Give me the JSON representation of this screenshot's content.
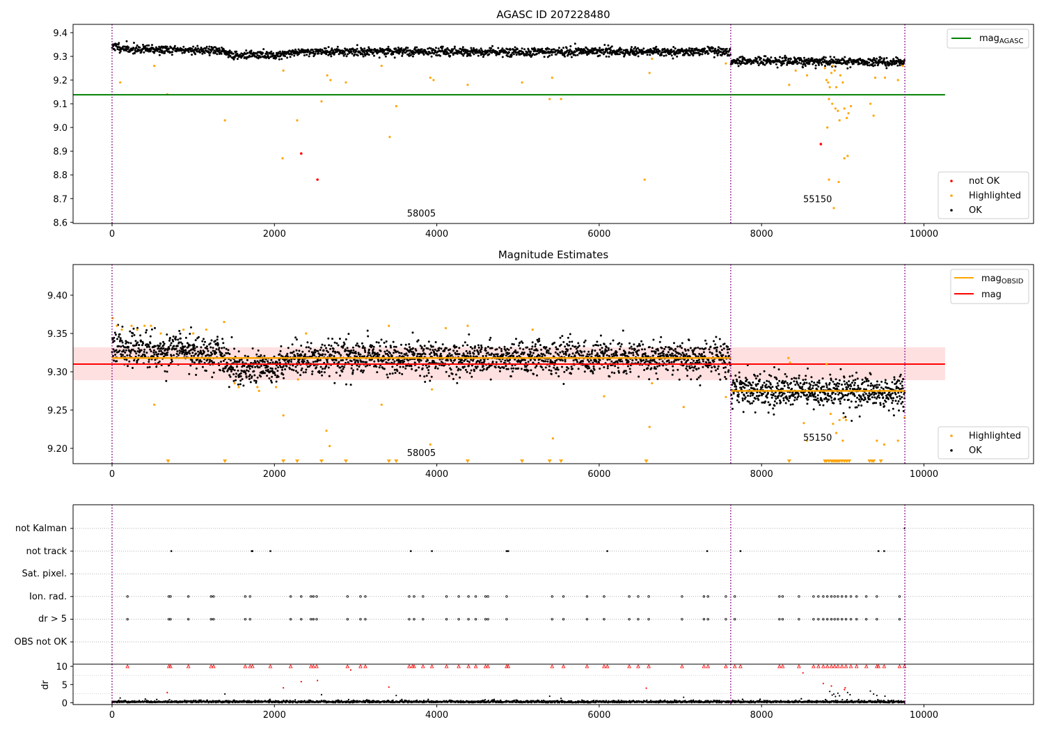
{
  "chart_data": [
    {
      "type": "scatter",
      "title": "AGASC ID 207228480",
      "xlim": [
        -480,
        11350
      ],
      "ylim": [
        8.595,
        9.435
      ],
      "xticks": [
        0,
        2000,
        4000,
        6000,
        8000,
        10000
      ],
      "yticks": [
        8.6,
        8.7,
        8.8,
        8.9,
        9.0,
        9.1,
        9.2,
        9.3,
        9.4
      ],
      "vlines": [
        0,
        7620,
        9765
      ],
      "hline": {
        "name": "mag",
        "subscript": "AGASC",
        "y": 9.138,
        "x": [
          -480,
          10260
        ],
        "color": "#008000"
      },
      "annotations": [
        {
          "text": "58005",
          "x": 3810,
          "y": 8.625
        },
        {
          "text": "55150",
          "x": 8690,
          "y": 8.685
        }
      ],
      "legend_top": {
        "placement": "top-right",
        "entries": [
          {
            "label": "mag",
            "subscript": "AGASC",
            "color": "#008000"
          }
        ]
      },
      "legend_bottom": {
        "placement": "bottom-right",
        "entries": [
          {
            "label": "not OK",
            "color": "#ff0000"
          },
          {
            "label": "Highlighted",
            "color": "#ffa500"
          },
          {
            "label": "OK",
            "color": "#000000"
          }
        ]
      },
      "segments": [
        {
          "x": [
            0,
            7620
          ],
          "levels": [
            [
              0,
              9.345
            ],
            [
              200,
              9.33
            ],
            [
              1300,
              9.325
            ],
            [
              1500,
              9.305
            ],
            [
              2000,
              9.305
            ],
            [
              2300,
              9.32
            ],
            [
              7620,
              9.32
            ]
          ],
          "noise": 0.009
        },
        {
          "x": [
            7620,
            9765
          ],
          "levels": [
            [
              7620,
              9.28
            ],
            [
              9765,
              9.275
            ]
          ],
          "noise": 0.009
        }
      ],
      "highlighted": [
        [
          100,
          9.19
        ],
        [
          520,
          9.26
        ],
        [
          680,
          9.14
        ],
        [
          1390,
          9.03
        ],
        [
          2100,
          8.87
        ],
        [
          2110,
          9.24
        ],
        [
          2280,
          9.03
        ],
        [
          2580,
          9.11
        ],
        [
          2650,
          9.22
        ],
        [
          2690,
          9.2
        ],
        [
          2880,
          9.19
        ],
        [
          3320,
          9.26
        ],
        [
          3420,
          8.96
        ],
        [
          3500,
          9.09
        ],
        [
          3920,
          9.21
        ],
        [
          3960,
          9.2
        ],
        [
          4380,
          9.18
        ],
        [
          5050,
          9.19
        ],
        [
          5420,
          9.21
        ],
        [
          5390,
          9.12
        ],
        [
          5530,
          9.12
        ],
        [
          6560,
          8.78
        ],
        [
          6620,
          9.23
        ],
        [
          6650,
          9.29
        ],
        [
          7560,
          9.27
        ],
        [
          8340,
          9.18
        ],
        [
          8420,
          9.24
        ],
        [
          8560,
          9.22
        ],
        [
          8780,
          9.25
        ],
        [
          8800,
          9.2
        ],
        [
          8820,
          9.19
        ],
        [
          8830,
          9.12
        ],
        [
          8840,
          9.17
        ],
        [
          8860,
          9.23
        ],
        [
          8870,
          9.1
        ],
        [
          8880,
          9.26
        ],
        [
          8900,
          9.24
        ],
        [
          8910,
          9.08
        ],
        [
          8920,
          9.17
        ],
        [
          8940,
          9.07
        ],
        [
          8960,
          9.03
        ],
        [
          8970,
          9.22
        ],
        [
          9000,
          9.19
        ],
        [
          9020,
          9.08
        ],
        [
          9050,
          9.04
        ],
        [
          9070,
          9.06
        ],
        [
          9100,
          9.09
        ],
        [
          9020,
          8.87
        ],
        [
          9060,
          8.88
        ],
        [
          8810,
          9.0
        ],
        [
          8830,
          8.78
        ],
        [
          8950,
          8.77
        ],
        [
          8890,
          8.66
        ],
        [
          9340,
          9.1
        ],
        [
          9380,
          9.05
        ],
        [
          9400,
          9.21
        ],
        [
          9520,
          9.21
        ],
        [
          9680,
          9.2
        ],
        [
          9740,
          9.26
        ]
      ],
      "not_ok": [
        [
          2330,
          8.89
        ],
        [
          2530,
          8.78
        ],
        [
          8730,
          8.93
        ]
      ]
    },
    {
      "type": "scatter",
      "title": "Magnitude Estimates",
      "xlim": [
        -480,
        11350
      ],
      "ylim": [
        9.18,
        9.44
      ],
      "xticks": [
        0,
        2000,
        4000,
        6000,
        8000,
        10000
      ],
      "yticks": [
        9.2,
        9.25,
        9.3,
        9.35,
        9.4
      ],
      "vlines": [
        0,
        7620,
        9765
      ],
      "mag_line": {
        "name": "mag",
        "y": 9.31,
        "band": [
          9.289,
          9.332
        ],
        "x": [
          -480,
          10260
        ],
        "color": "#ff0000"
      },
      "obsid_lines": [
        {
          "x": [
            0,
            7620
          ],
          "y": 9.318
        },
        {
          "x": [
            7620,
            9765
          ],
          "y": 9.275
        }
      ],
      "annotations": [
        {
          "text": "58005",
          "x": 3810,
          "y": 9.19
        },
        {
          "text": "55150",
          "x": 8690,
          "y": 9.21
        }
      ],
      "legend_top": {
        "placement": "top-right",
        "entries": [
          {
            "label": "mag",
            "subscript": "OBSID",
            "color": "#ffa500"
          },
          {
            "label": "mag",
            "subscript": "",
            "color": "#ff0000"
          }
        ]
      },
      "legend_bottom": {
        "placement": "bottom-right",
        "entries": [
          {
            "label": "Highlighted",
            "color": "#ffa500"
          },
          {
            "label": "OK",
            "color": "#000000"
          }
        ]
      },
      "segments": [
        {
          "x": [
            0,
            7620
          ],
          "levels": [
            [
              0,
              9.34
            ],
            [
              200,
              9.33
            ],
            [
              1300,
              9.325
            ],
            [
              1500,
              9.305
            ],
            [
              2000,
              9.305
            ],
            [
              2300,
              9.318
            ],
            [
              7620,
              9.318
            ]
          ],
          "noise": 0.011
        },
        {
          "x": [
            7620,
            9765
          ],
          "levels": [
            [
              7620,
              9.278
            ],
            [
              9765,
              9.273
            ]
          ],
          "noise": 0.011
        }
      ],
      "highlighted": [
        [
          10,
          9.37
        ],
        [
          60,
          9.36
        ],
        [
          120,
          9.355
        ],
        [
          240,
          9.36
        ],
        [
          310,
          9.355
        ],
        [
          400,
          9.36
        ],
        [
          480,
          9.36
        ],
        [
          600,
          9.35
        ],
        [
          880,
          9.355
        ],
        [
          1000,
          9.35
        ],
        [
          1160,
          9.355
        ],
        [
          1380,
          9.365
        ],
        [
          1510,
          9.285
        ],
        [
          1560,
          9.28
        ],
        [
          1790,
          9.28
        ],
        [
          1810,
          9.275
        ],
        [
          2020,
          9.28
        ],
        [
          2110,
          9.243
        ],
        [
          520,
          9.257
        ],
        [
          2290,
          9.29
        ],
        [
          2390,
          9.35
        ],
        [
          2640,
          9.223
        ],
        [
          2680,
          9.203
        ],
        [
          3320,
          9.257
        ],
        [
          3410,
          9.36
        ],
        [
          3920,
          9.205
        ],
        [
          3940,
          9.277
        ],
        [
          4110,
          9.357
        ],
        [
          4380,
          9.36
        ],
        [
          5180,
          9.355
        ],
        [
          5430,
          9.213
        ],
        [
          6060,
          9.268
        ],
        [
          6620,
          9.228
        ],
        [
          6650,
          9.285
        ],
        [
          7560,
          9.267
        ],
        [
          7040,
          9.254
        ],
        [
          8330,
          9.318
        ],
        [
          8350,
          9.312
        ],
        [
          8520,
          9.233
        ],
        [
          8560,
          9.21
        ],
        [
          8800,
          9.31
        ],
        [
          8850,
          9.245
        ],
        [
          8880,
          9.232
        ],
        [
          8920,
          9.22
        ],
        [
          8960,
          9.237
        ],
        [
          9000,
          9.21
        ],
        [
          9010,
          9.24
        ],
        [
          9040,
          9.237
        ],
        [
          9420,
          9.21
        ],
        [
          9510,
          9.205
        ],
        [
          9680,
          9.21
        ],
        [
          9760,
          9.24
        ]
      ],
      "clipped_below": [
        690,
        1390,
        2110,
        2280,
        2580,
        2880,
        3410,
        3500,
        4380,
        5050,
        5390,
        5530,
        6580,
        8340,
        8780,
        8800,
        8830,
        8860,
        8880,
        8900,
        8920,
        8940,
        8960,
        8990,
        9020,
        9050,
        9080,
        9330,
        9360,
        9380,
        9470
      ]
    },
    {
      "type": "scatter",
      "title": "",
      "xlim": [
        -480,
        11350
      ],
      "ylim": [
        -0.5,
        6.5
      ],
      "xticks": [
        0,
        2000,
        4000,
        6000,
        8000,
        10000
      ],
      "row_labels": [
        "not Kalman",
        "not track",
        "Sat. pixel.",
        "Ion. rad.",
        "dr > 5",
        "OBS not OK"
      ],
      "vlines": [
        0,
        7620,
        9765
      ],
      "rows": {
        "not_kalman": [
          9760
        ],
        "not_track": [
          730,
          1720,
          1730,
          1950,
          3680,
          3940,
          4860,
          4880,
          6100,
          7330,
          7740,
          9440,
          9510
        ],
        "ion_rad": [
          190,
          700,
          720,
          940,
          1220,
          1250,
          1640,
          1700,
          2200,
          2330,
          2450,
          2480,
          2520,
          2900,
          3060,
          3120,
          3660,
          3720,
          3830,
          4120,
          4270,
          4390,
          4480,
          4600,
          4630,
          4860,
          5420,
          5560,
          5850,
          6060,
          6370,
          6480,
          6610,
          7020,
          7290,
          7340,
          7560,
          7670,
          8220,
          8260,
          8460,
          8640,
          8700,
          8760,
          8810,
          8860,
          8900,
          8940,
          8990,
          9040,
          9100,
          9170,
          9290,
          9420,
          9700
        ],
        "dr_gt_5": [
          190,
          700,
          720,
          940,
          1220,
          1250,
          1640,
          1700,
          2200,
          2330,
          2450,
          2480,
          2520,
          2900,
          3060,
          3120,
          3660,
          3720,
          3830,
          4120,
          4270,
          4390,
          4480,
          4600,
          4630,
          4860,
          5420,
          5560,
          5850,
          6060,
          6370,
          6480,
          6610,
          7020,
          7290,
          7340,
          7560,
          7670,
          8220,
          8260,
          8460,
          8640,
          8700,
          8760,
          8810,
          8860,
          8900,
          8940,
          8990,
          9040,
          9100,
          9170,
          9290,
          9420,
          9700
        ]
      }
    },
    {
      "type": "scatter",
      "title": "",
      "ylabel": "dr",
      "xlim": [
        -480,
        11350
      ],
      "ylim": [
        -0.5,
        10.6
      ],
      "xticks": [
        0,
        2000,
        4000,
        6000,
        8000,
        10000
      ],
      "yticks": [
        0,
        5,
        10
      ],
      "vlines": [
        0,
        7620,
        9765
      ],
      "base_noise": 0.8,
      "capped_at_10": [
        190,
        700,
        720,
        940,
        1220,
        1250,
        1640,
        1700,
        1730,
        1950,
        2200,
        2450,
        2480,
        2520,
        2900,
        3060,
        3120,
        3660,
        3700,
        3720,
        3830,
        3940,
        4120,
        4270,
        4390,
        4480,
        4600,
        4630,
        4860,
        4880,
        5420,
        5560,
        5850,
        6060,
        6100,
        6370,
        6480,
        6610,
        7020,
        7290,
        7340,
        7560,
        7670,
        7740,
        8220,
        8260,
        8460,
        8640,
        8700,
        8760,
        8810,
        8860,
        8900,
        8940,
        8990,
        9040,
        9100,
        9170,
        9290,
        9420,
        9440,
        9510,
        9700,
        9760
      ],
      "red_points": [
        [
          680,
          2.8
        ],
        [
          2110,
          4.1
        ],
        [
          2330,
          5.8
        ],
        [
          2530,
          6.1
        ],
        [
          2940,
          9.0
        ],
        [
          3410,
          4.3
        ],
        [
          6580,
          4.0
        ],
        [
          8510,
          8.2
        ],
        [
          8760,
          5.3
        ],
        [
          8860,
          4.6
        ],
        [
          9020,
          3.6
        ],
        [
          9030,
          4.1
        ]
      ],
      "black_points": [
        [
          100,
          1.3
        ],
        [
          1390,
          2.4
        ],
        [
          2580,
          2.2
        ],
        [
          3500,
          2.0
        ],
        [
          5390,
          1.8
        ],
        [
          5530,
          1.2
        ],
        [
          7040,
          1.5
        ],
        [
          8840,
          3.1
        ],
        [
          8870,
          2.1
        ],
        [
          8890,
          2.4
        ],
        [
          8910,
          1.7
        ],
        [
          8940,
          2.6
        ],
        [
          8960,
          1.9
        ],
        [
          9060,
          2.8
        ],
        [
          9090,
          2.2
        ],
        [
          9340,
          3.2
        ],
        [
          9380,
          2.4
        ],
        [
          9420,
          2.0
        ],
        [
          9520,
          1.8
        ]
      ]
    }
  ]
}
